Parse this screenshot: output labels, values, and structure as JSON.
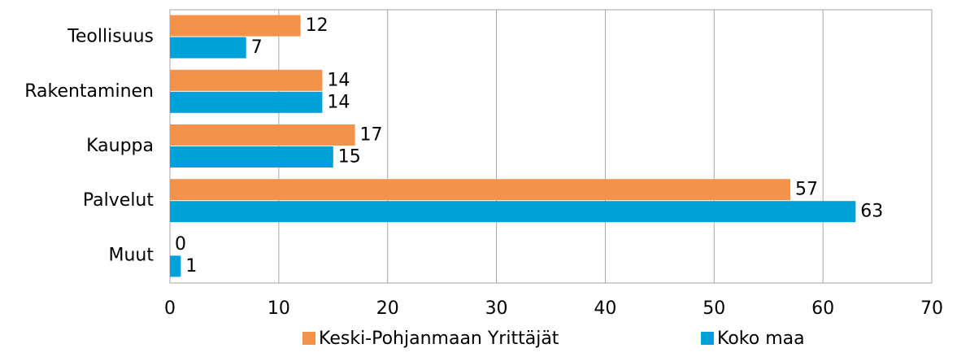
{
  "chart_data": {
    "type": "hbar",
    "categories": [
      "Teollisuus",
      "Rakentaminen",
      "Kauppa",
      "Palvelut",
      "Muut"
    ],
    "series": [
      {
        "name": "Keski-Pohjanmaan Yrittäjät",
        "color": "#f39248",
        "values": [
          12,
          14,
          17,
          57,
          0
        ]
      },
      {
        "name": "Koko maa",
        "color": "#00a0d8",
        "values": [
          7,
          14,
          15,
          63,
          1
        ]
      }
    ],
    "xlim": [
      0,
      70
    ],
    "xticks": [
      0,
      10,
      20,
      30,
      40,
      50,
      60,
      70
    ],
    "grid": true,
    "legend": "bottom"
  }
}
